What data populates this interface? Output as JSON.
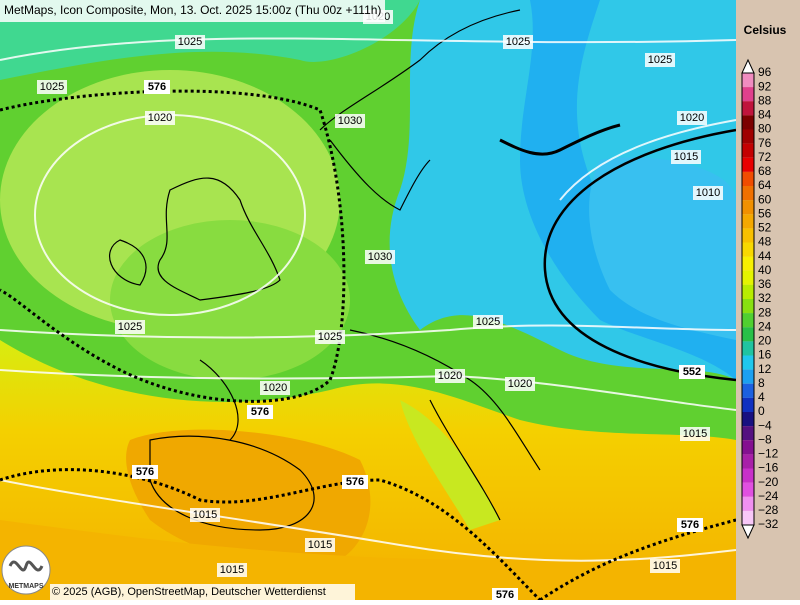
{
  "header": {
    "title": "MetMaps, Icon Composite, Mon, 13. Oct. 2025 15:00z (Thu 00z +111h)"
  },
  "legend": {
    "title": "Celsius",
    "labels": [
      "96",
      "92",
      "88",
      "84",
      "80",
      "76",
      "72",
      "68",
      "64",
      "60",
      "56",
      "52",
      "48",
      "44",
      "40",
      "36",
      "32",
      "28",
      "24",
      "20",
      "16",
      "12",
      "8",
      "4",
      "0",
      "−4",
      "−8",
      "−12",
      "−16",
      "−20",
      "−24",
      "−28",
      "−32"
    ],
    "colors": [
      "#f08cc0",
      "#e0408c",
      "#c0143c",
      "#7c0000",
      "#a00000",
      "#c40000",
      "#e80000",
      "#f04c00",
      "#f07000",
      "#f09000",
      "#f4a800",
      "#f8c000",
      "#f8d800",
      "#f8f000",
      "#e4f400",
      "#b8ec00",
      "#88e010",
      "#50d030",
      "#28c048",
      "#20c4a0",
      "#20c8ec",
      "#1ca0f0",
      "#1c60e0",
      "#1030c0",
      "#181080",
      "#541080",
      "#841090",
      "#a820a8",
      "#c830c8",
      "#e050e0",
      "#f090f0",
      "#f8c8f8"
    ]
  },
  "isobar_labels": [
    "1020",
    "1025",
    "1025",
    "1025",
    "1025",
    "1020",
    "1020",
    "1015",
    "1010",
    "1030",
    "1030",
    "1025",
    "1025",
    "1025",
    "1020",
    "1020",
    "1020",
    "1015",
    "1015",
    "1015",
    "1015",
    "1015"
  ],
  "height_labels": [
    "576",
    "576",
    "576",
    "576",
    "552",
    "576",
    "576"
  ],
  "logo": {
    "text": "METMAPS"
  },
  "footer": {
    "copyright": "© 2025 (AGB), OpenStreetMap, Deutscher Wetterdienst"
  }
}
